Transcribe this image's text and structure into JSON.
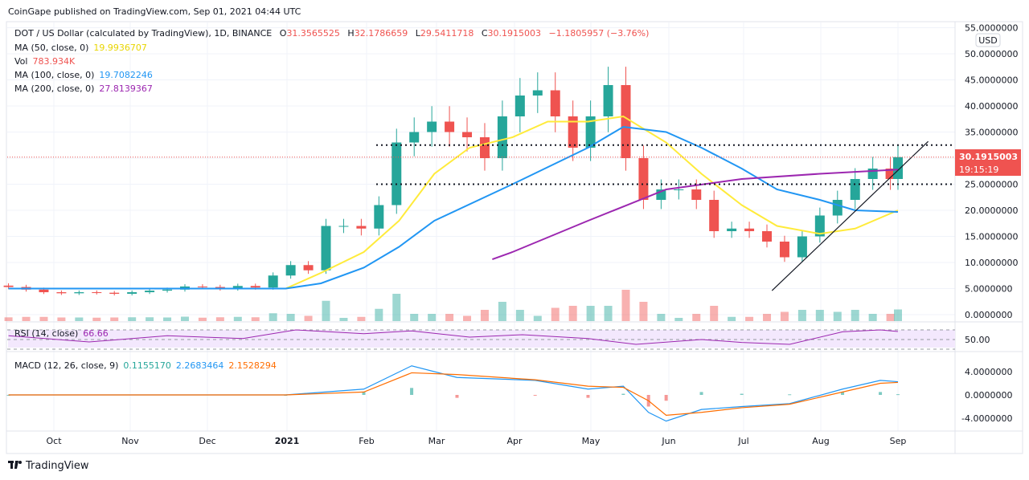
{
  "header": {
    "published": "CoinGape published on TradingView.com, Sep 01, 2021 04:44 UTC"
  },
  "legend": {
    "symbol": "DOT / US Dollar (calculated by TradingView), 1D, BINANCE",
    "o_label": "O",
    "o": "31.3565525",
    "h_label": "H",
    "h": "32.1786659",
    "l_label": "L",
    "l": "29.5411718",
    "c_label": "C",
    "c": "30.1915003",
    "change": "−1.1805957 (−3.76%)",
    "ma50_label": "MA (50, close, 0)",
    "ma50": "19.9936707",
    "vol_label": "Vol",
    "vol": "783.934K",
    "ma100_label": "MA (100, close, 0)",
    "ma100": "19.7082246",
    "ma200_label": "MA (200, close, 0)",
    "ma200": "27.8139367",
    "rsi_label": "RSI (14, close)",
    "rsi": "66.66",
    "macd_label": "MACD (12, 26, close, 9)",
    "macd_hist": "0.1155170",
    "macd": "2.2683464",
    "macd_signal": "2.1528294"
  },
  "price_axis": {
    "currency": "USD",
    "ticks": [
      "55.0000000",
      "50.0000000",
      "45.0000000",
      "40.0000000",
      "35.0000000",
      "30.0000000",
      "25.0000000",
      "20.0000000",
      "15.0000000",
      "10.0000000",
      "5.0000000",
      "0.0000000"
    ],
    "last_price": "30.1915003",
    "countdown": "19:15:19"
  },
  "rsi_axis": {
    "ticks": [
      "50.00"
    ]
  },
  "macd_axis": {
    "ticks": [
      "4.0000000",
      "0.0000000",
      "-4.0000000"
    ]
  },
  "time_axis": {
    "labels": [
      "Oct",
      "Nov",
      "Dec",
      "2021",
      "Feb",
      "Mar",
      "Apr",
      "May",
      "Jun",
      "Jul",
      "Aug",
      "Sep"
    ]
  },
  "footer": {
    "brand": "TradingView"
  },
  "colors": {
    "up": "#26a69a",
    "down": "#ef5350",
    "ma50": "#ffeb3b",
    "ma100": "#2196f3",
    "ma200": "#9c27b0",
    "rsi": "#9c27b0",
    "macd": "#2196f3",
    "signal": "#ff6d00"
  },
  "chart_data": {
    "type": "candlestick",
    "title": "DOT / US Dollar (calculated by TradingView), 1D, BINANCE",
    "ylim": [
      0,
      55
    ],
    "xlim": [
      "2020-09-13",
      "2021-09-18"
    ],
    "grid": true,
    "candles_weekly_close": {
      "dates": [
        "2020-09-13",
        "2020-09-20",
        "2020-09-27",
        "2020-10-04",
        "2020-10-11",
        "2020-10-18",
        "2020-10-25",
        "2020-11-01",
        "2020-11-08",
        "2020-11-15",
        "2020-11-22",
        "2020-11-29",
        "2020-12-06",
        "2020-12-13",
        "2020-12-20",
        "2020-12-27",
        "2021-01-03",
        "2021-01-10",
        "2021-01-17",
        "2021-01-24",
        "2021-01-31",
        "2021-02-07",
        "2021-02-14",
        "2021-02-21",
        "2021-02-28",
        "2021-03-07",
        "2021-03-14",
        "2021-03-21",
        "2021-03-28",
        "2021-04-04",
        "2021-04-11",
        "2021-04-18",
        "2021-04-25",
        "2021-05-02",
        "2021-05-09",
        "2021-05-16",
        "2021-05-23",
        "2021-05-30",
        "2021-06-06",
        "2021-06-13",
        "2021-06-20",
        "2021-06-27",
        "2021-07-04",
        "2021-07-11",
        "2021-07-18",
        "2021-07-25",
        "2021-08-01",
        "2021-08-08",
        "2021-08-15",
        "2021-08-22",
        "2021-08-29",
        "2021-09-01"
      ],
      "close": [
        5.3,
        4.8,
        4.3,
        4.1,
        4.3,
        4.2,
        4.0,
        4.3,
        4.6,
        4.8,
        5.4,
        5.3,
        5.0,
        5.5,
        5.2,
        7.5,
        9.5,
        8.5,
        17,
        17,
        16.5,
        21,
        33,
        35,
        37,
        35,
        34,
        30,
        38,
        42,
        43,
        38,
        32,
        38,
        44,
        30,
        22,
        24,
        24,
        22,
        16,
        16.5,
        16,
        14,
        11,
        15,
        19,
        22,
        26,
        28,
        26,
        30.19
      ]
    },
    "moving_averages": [
      {
        "name": "MA (50, close, 0)",
        "dates": [
          "2020-09-13",
          "2021-01-01",
          "2021-01-15",
          "2021-02-01",
          "2021-02-15",
          "2021-03-01",
          "2021-03-15",
          "2021-04-01",
          "2021-04-15",
          "2021-05-01",
          "2021-05-15",
          "2021-06-01",
          "2021-06-15",
          "2021-07-01",
          "2021-07-15",
          "2021-08-01",
          "2021-08-15",
          "2021-09-01"
        ],
        "values": [
          5,
          5,
          8,
          12,
          18,
          27,
          32,
          34,
          37,
          37,
          38,
          33,
          27,
          21,
          17,
          15.5,
          16.5,
          20
        ]
      },
      {
        "name": "MA (100, close, 0)",
        "dates": [
          "2020-09-13",
          "2021-01-01",
          "2021-01-15",
          "2021-02-01",
          "2021-02-15",
          "2021-03-01",
          "2021-04-01",
          "2021-05-01",
          "2021-05-15",
          "2021-06-01",
          "2021-06-15",
          "2021-07-01",
          "2021-07-15",
          "2021-08-01",
          "2021-08-15",
          "2021-09-01"
        ],
        "values": [
          5,
          5,
          6,
          9,
          13,
          18,
          25,
          32,
          36,
          35,
          32,
          28,
          24,
          22,
          20,
          19.7
        ]
      },
      {
        "name": "MA (200, close, 0)",
        "dates": [
          "2021-03-24",
          "2021-04-01",
          "2021-05-01",
          "2021-06-01",
          "2021-07-01",
          "2021-08-01",
          "2021-09-01"
        ],
        "values": [
          10.6,
          12,
          18,
          24,
          26,
          27,
          27.8
        ]
      }
    ],
    "horizontal_levels": [
      32.5,
      25
    ],
    "trendline": {
      "from": [
        "2021-07-13",
        4.6
      ],
      "to": [
        "2021-09-13",
        33.2
      ]
    },
    "rsi": {
      "ylim": [
        30,
        70
      ],
      "dates": [
        "2020-09-13",
        "2020-10-15",
        "2020-11-15",
        "2020-12-15",
        "2021-01-05",
        "2021-02-01",
        "2021-02-20",
        "2021-03-15",
        "2021-04-05",
        "2021-05-01",
        "2021-05-20",
        "2021-06-15",
        "2021-07-01",
        "2021-07-20",
        "2021-08-10",
        "2021-08-25",
        "2021-09-01"
      ],
      "values": [
        58,
        45,
        58,
        52,
        70,
        62,
        68,
        55,
        60,
        52,
        40,
        50,
        44,
        40,
        66,
        70,
        66.66
      ]
    },
    "macd": {
      "ylim": [
        -5,
        6
      ],
      "dates": [
        "2020-09-13",
        "2021-01-01",
        "2021-02-01",
        "2021-02-20",
        "2021-03-10",
        "2021-04-10",
        "2021-05-01",
        "2021-05-15",
        "2021-05-25",
        "2021-06-01",
        "2021-06-15",
        "2021-07-01",
        "2021-07-20",
        "2021-08-10",
        "2021-08-25",
        "2021-09-01"
      ],
      "macd": [
        0,
        0,
        1,
        5,
        3,
        2.5,
        1,
        1.5,
        -3,
        -4.5,
        -2.5,
        -2,
        -1.5,
        1,
        2.5,
        2.27
      ],
      "signal": [
        0,
        0,
        0.5,
        3.8,
        3.5,
        2.6,
        1.5,
        1.3,
        -1,
        -3.5,
        -3,
        -2.2,
        -1.6,
        0.5,
        2,
        2.15
      ]
    }
  }
}
